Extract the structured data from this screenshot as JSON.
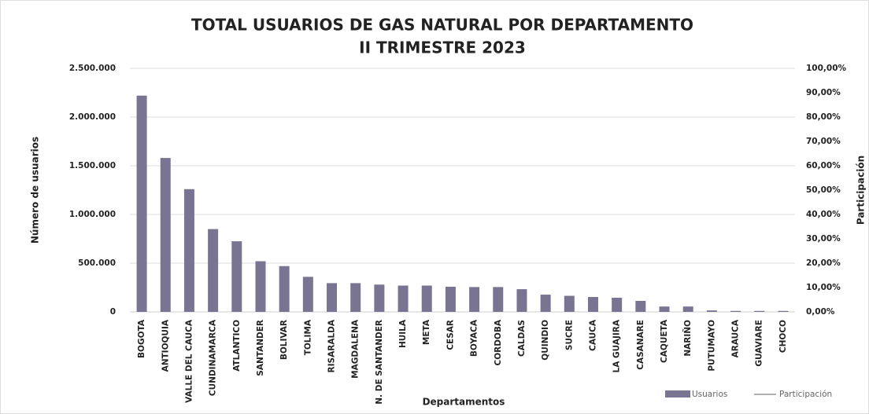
{
  "chart_data": {
    "type": "bar",
    "title": "TOTAL USUARIOS DE GAS NATURAL POR DEPARTAMENTO",
    "subtitle": "II TRIMESTRE 2023",
    "x_label": "Departamentos",
    "y_label": "Número de usuarios",
    "y2_label": "Participación",
    "categories": [
      "BOGOTA",
      "ANTIOQUIA",
      "VALLE DEL CAUCA",
      "CUNDINAMARCA",
      "ATLANTICO",
      "SANTANDER",
      "BOLIVAR",
      "TOLIMA",
      "RISARALDA",
      "MAGDALENA",
      "N. DE SANTANDER",
      "HUILA",
      "META",
      "CESAR",
      "BOYACA",
      "CORDOBA",
      "CALDAS",
      "QUINDIO",
      "SUCRE",
      "CAUCA",
      "LA GUAJIRA",
      "CASANARE",
      "CAQUETA",
      "NARIÑO",
      "PUTUMAYO",
      "ARAUCA",
      "GUAVIARE",
      "CHOCO"
    ],
    "series": [
      {
        "name": "Usuarios",
        "type": "bar",
        "color": "#7a7493",
        "values": [
          2220000,
          1580000,
          1260000,
          850000,
          725000,
          520000,
          470000,
          360000,
          295000,
          295000,
          280000,
          270000,
          270000,
          258000,
          255000,
          255000,
          233000,
          177000,
          165000,
          153000,
          145000,
          113000,
          55000,
          55000,
          15000,
          10000,
          10000,
          10000
        ]
      },
      {
        "name": "Participación",
        "type": "line",
        "axis": "y2",
        "color": "#b0b0b0",
        "values": [
          null,
          null,
          null,
          null,
          null,
          null,
          null,
          null,
          null,
          null,
          null,
          null,
          null,
          null,
          null,
          null,
          null,
          null,
          null,
          null,
          null,
          null,
          null,
          null,
          null,
          null,
          null,
          null
        ]
      }
    ],
    "ylim": [
      0,
      2500000
    ],
    "yticks": [
      0,
      {
        "value": 500000,
        "label": "500.000"
      },
      {
        "value": 1000000,
        "label": "1.000.000"
      },
      {
        "value": 1500000,
        "label": "1.500.000"
      },
      {
        "value": 2000000,
        "label": "2.000.000"
      },
      {
        "value": 2500000,
        "label": "2.500.000"
      }
    ],
    "y2lim": [
      0,
      100
    ],
    "y2ticks": [
      {
        "value": 0,
        "label": "0,00%"
      },
      {
        "value": 10,
        "label": "10,00%"
      },
      {
        "value": 20,
        "label": "20,00%"
      },
      {
        "value": 30,
        "label": "30,00%"
      },
      {
        "value": 40,
        "label": "40,00%"
      },
      {
        "value": 50,
        "label": "50,00%"
      },
      {
        "value": 60,
        "label": "60,00%"
      },
      {
        "value": 70,
        "label": "70,00%"
      },
      {
        "value": 80,
        "label": "80,00%"
      },
      {
        "value": 90,
        "label": "90,00%"
      },
      {
        "value": 100,
        "label": "100,00%"
      }
    ],
    "grid": true,
    "legend": "bottom-right"
  }
}
